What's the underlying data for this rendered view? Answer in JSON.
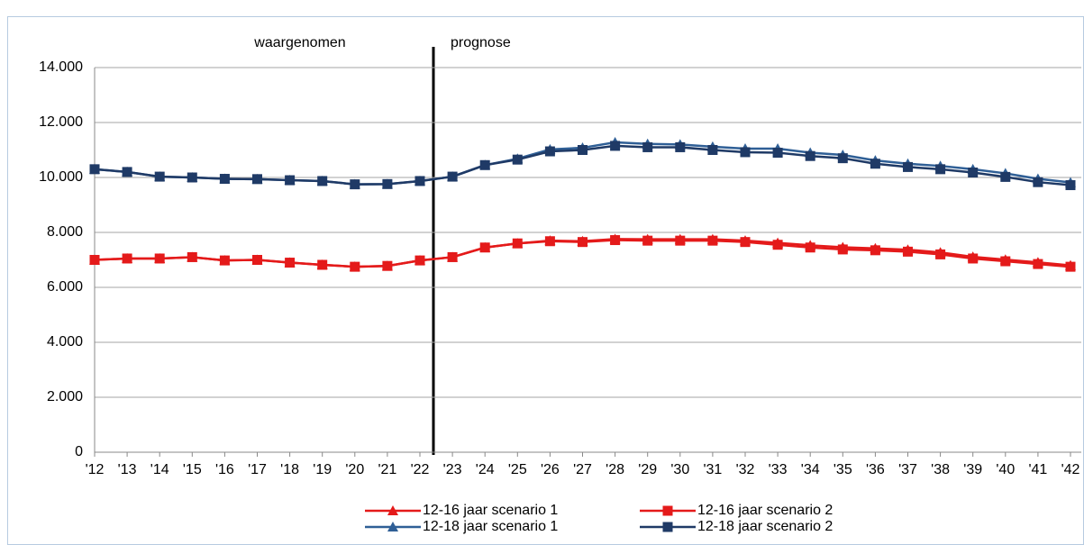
{
  "chart_data": {
    "type": "line",
    "annotations": [
      "waargenomen",
      "prognose"
    ],
    "categories": [
      "'12",
      "'13",
      "'14",
      "'15",
      "'16",
      "'17",
      "'18",
      "'19",
      "'20",
      "'21",
      "'22",
      "'23",
      "'24",
      "'25",
      "'26",
      "'27",
      "'28",
      "'29",
      "'30",
      "'31",
      "'32",
      "'33",
      "'34",
      "'35",
      "'36",
      "'37",
      "'38",
      "'39",
      "'40",
      "'41",
      "'42"
    ],
    "series": [
      {
        "name": "12-16 jaar scenario 1",
        "color": "#e41a1a",
        "marker": "triangle",
        "values": [
          7000,
          7050,
          7050,
          7100,
          6980,
          7000,
          6900,
          6820,
          6750,
          6780,
          6980,
          7100,
          7450,
          7600,
          7700,
          7680,
          7760,
          7750,
          7750,
          7750,
          7700,
          7620,
          7530,
          7460,
          7420,
          7370,
          7270,
          7110,
          7010,
          6910,
          6800
        ]
      },
      {
        "name": "12-16 jaar scenario 2",
        "color": "#e41a1a",
        "marker": "square",
        "values": [
          7000,
          7050,
          7050,
          7100,
          6980,
          7000,
          6900,
          6820,
          6750,
          6780,
          6980,
          7100,
          7450,
          7600,
          7680,
          7650,
          7720,
          7700,
          7700,
          7700,
          7650,
          7550,
          7450,
          7380,
          7350,
          7300,
          7200,
          7050,
          6950,
          6850,
          6750
        ]
      },
      {
        "name": "12-18 jaar scenario 1",
        "color": "#2f5f96",
        "marker": "triangle",
        "values": [
          10300,
          10200,
          10030,
          10000,
          9950,
          9940,
          9900,
          9870,
          9750,
          9760,
          9870,
          10030,
          10450,
          10680,
          11020,
          11080,
          11280,
          11220,
          11200,
          11120,
          11050,
          11050,
          10900,
          10820,
          10620,
          10500,
          10420,
          10300,
          10150,
          9950,
          9820
        ]
      },
      {
        "name": "12-18 jaar scenario 2",
        "color": "#1f3a66",
        "marker": "square",
        "values": [
          10300,
          10200,
          10030,
          10000,
          9950,
          9940,
          9900,
          9870,
          9750,
          9760,
          9870,
          10030,
          10450,
          10650,
          10950,
          11000,
          11150,
          11100,
          11100,
          11000,
          10920,
          10900,
          10780,
          10700,
          10500,
          10380,
          10300,
          10180,
          10020,
          9830,
          9720
        ]
      }
    ],
    "ylim": [
      0,
      14000
    ],
    "yticks": [
      0,
      {
        "value": 2000,
        "label": "2.000"
      },
      {
        "value": 4000,
        "label": "4.000"
      },
      {
        "value": 6000,
        "label": "6.000"
      },
      {
        "value": 8000,
        "label": "8.000"
      },
      {
        "value": 10000,
        "label": "10.000"
      },
      {
        "value": 12000,
        "label": "12.000"
      },
      {
        "value": 14000,
        "label": "14.000"
      }
    ],
    "grid": true
  }
}
